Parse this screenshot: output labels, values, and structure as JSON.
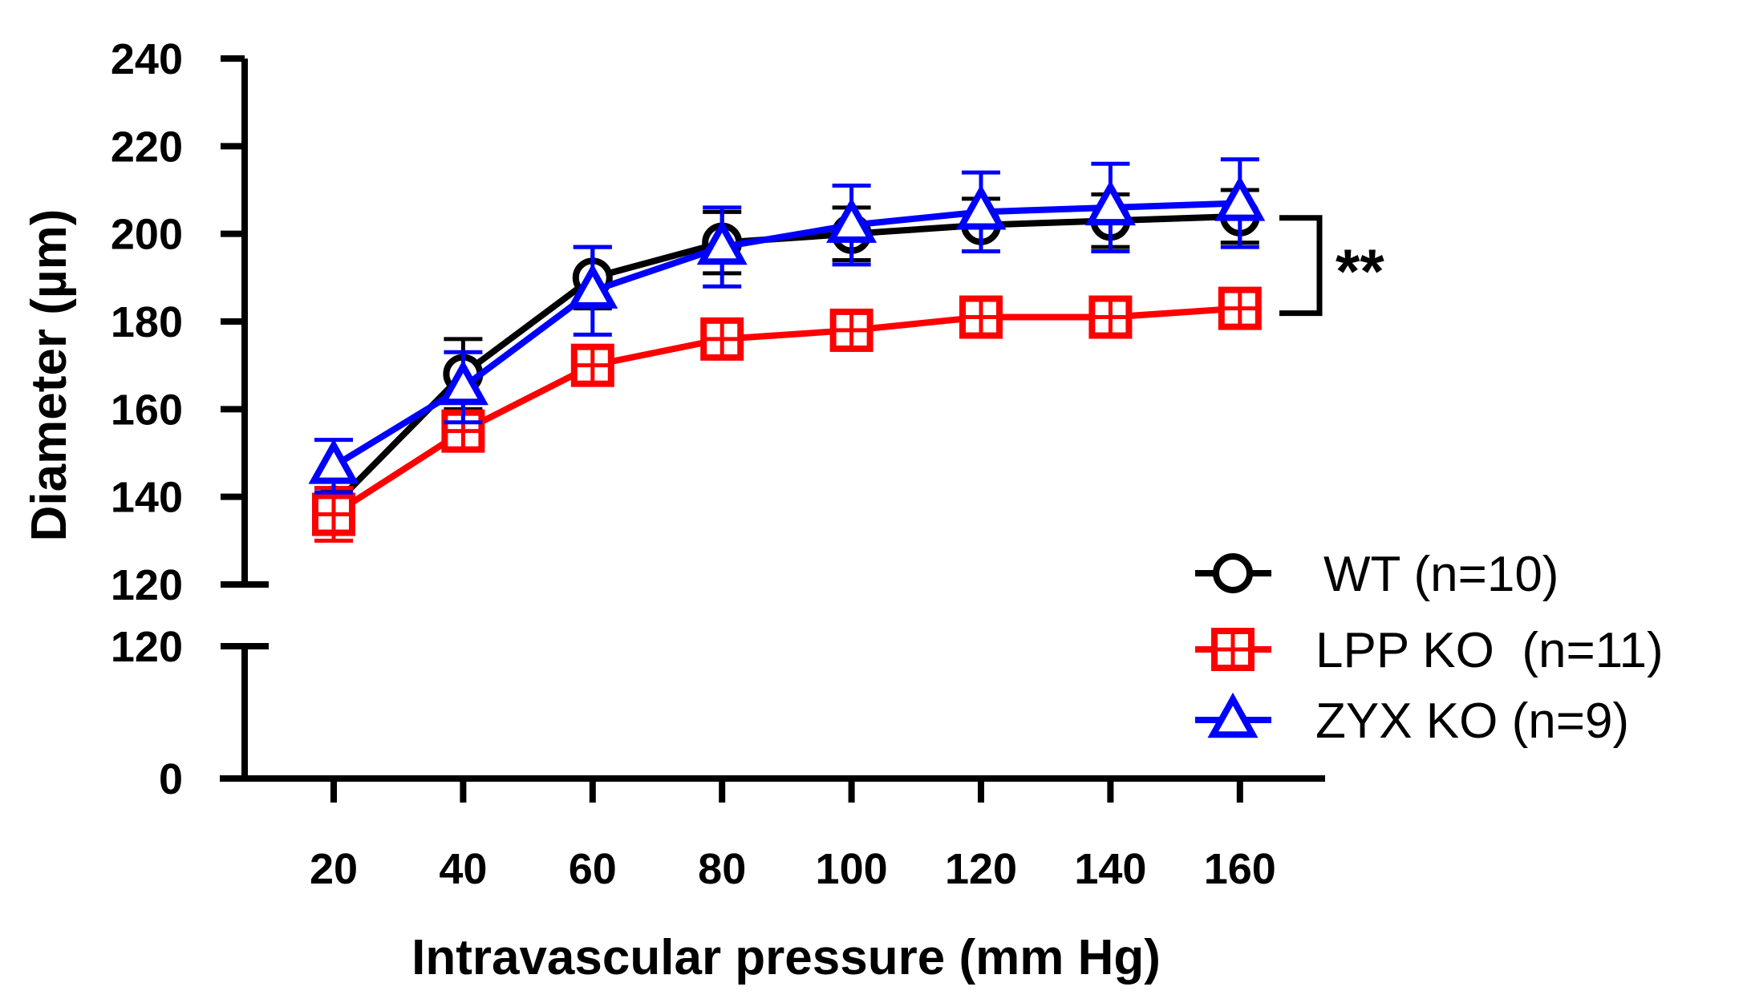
{
  "chart_data": {
    "type": "line",
    "xlabel": "Intravascular pressure (mm Hg)",
    "ylabel": "Diameter (µm)",
    "x": [
      20,
      40,
      60,
      80,
      100,
      120,
      140,
      160
    ],
    "x_ticks": [
      "20",
      "40",
      "60",
      "80",
      "100",
      "120",
      "140",
      "160"
    ],
    "y_axis_break": true,
    "y_upper_segment": {
      "ylim": [
        120,
        240
      ],
      "ticks": [
        "120",
        "140",
        "160",
        "180",
        "200",
        "220",
        "240"
      ]
    },
    "y_lower_segment": {
      "ylim": [
        0,
        120
      ],
      "ticks": [
        "0",
        "120"
      ]
    },
    "series": [
      {
        "name": "WT (n=10)",
        "color": "#000000",
        "marker": "circle",
        "values": [
          138,
          168,
          190,
          198,
          200,
          202,
          203,
          204
        ],
        "error": [
          4,
          8,
          7,
          7,
          6,
          6,
          6,
          6
        ]
      },
      {
        "name": "LPP KO  (n=11)",
        "color": "#ff0000",
        "marker": "square-cross",
        "values": [
          136,
          155,
          170,
          176,
          178,
          181,
          181,
          183
        ],
        "error": [
          6,
          4,
          3,
          3,
          3,
          3,
          3,
          3
        ]
      },
      {
        "name": "ZYX KO (n=9)",
        "color": "#0000ff",
        "marker": "triangle",
        "values": [
          147,
          165,
          187,
          197,
          202,
          205,
          206,
          207
        ],
        "error": [
          6,
          8,
          10,
          9,
          9,
          9,
          10,
          10
        ]
      }
    ],
    "annotation": "**",
    "legend_position": "right"
  }
}
